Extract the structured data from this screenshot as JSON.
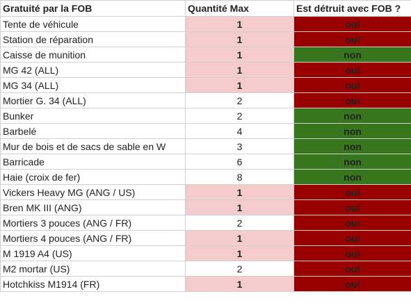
{
  "headers": {
    "item": "Gratuité par la FOB",
    "quantity": "Quantité Max",
    "destroyed": "Est détruit avec FOB ?"
  },
  "colors": {
    "highlight_qty": "#f4cccc",
    "destroyed_yes": "#990000",
    "destroyed_no": "#38761d"
  },
  "rows": [
    {
      "item": "Tente de véhicule",
      "qty": "1",
      "qty_highlight": true,
      "destroyed": "oui"
    },
    {
      "item": "Station de réparation",
      "qty": "1",
      "qty_highlight": true,
      "destroyed": "oui"
    },
    {
      "item": "Caisse de munition",
      "qty": "1",
      "qty_highlight": true,
      "destroyed": "non"
    },
    {
      "item": "MG 42 (ALL)",
      "qty": "1",
      "qty_highlight": true,
      "destroyed": "oui"
    },
    {
      "item": "MG 34 (ALL)",
      "qty": "1",
      "qty_highlight": true,
      "destroyed": "oui"
    },
    {
      "item": "Mortier G. 34 (ALL)",
      "qty": "2",
      "qty_highlight": false,
      "destroyed": "oui"
    },
    {
      "item": "Bunker",
      "qty": "2",
      "qty_highlight": false,
      "destroyed": "non"
    },
    {
      "item": "Barbelé",
      "qty": "4",
      "qty_highlight": false,
      "destroyed": "non"
    },
    {
      "item": "Mur de bois et de sacs de sable en W",
      "qty": "3",
      "qty_highlight": false,
      "destroyed": "non"
    },
    {
      "item": "Barricade",
      "qty": "6",
      "qty_highlight": false,
      "destroyed": "non"
    },
    {
      "item": "Haie (croix de fer)",
      "qty": "8",
      "qty_highlight": false,
      "destroyed": "non"
    },
    {
      "item": "Vickers Heavy MG (ANG / US)",
      "qty": "1",
      "qty_highlight": true,
      "destroyed": "oui"
    },
    {
      "item": "Bren MK III (ANG)",
      "qty": "1",
      "qty_highlight": true,
      "destroyed": "oui"
    },
    {
      "item": "Mortiers 3 pouces (ANG / FR)",
      "qty": "2",
      "qty_highlight": false,
      "destroyed": "oui"
    },
    {
      "item": "Mortiers 4 pouces  (ANG / FR)",
      "qty": "1",
      "qty_highlight": true,
      "destroyed": "oui"
    },
    {
      "item": "M 1919 A4 (US)",
      "qty": "1",
      "qty_highlight": true,
      "destroyed": "oui"
    },
    {
      "item": "M2 mortar (US)",
      "qty": "2",
      "qty_highlight": false,
      "destroyed": "oui"
    },
    {
      "item": "Hotchkiss M1914 (FR)",
      "qty": "1",
      "qty_highlight": true,
      "destroyed": "oui"
    }
  ]
}
